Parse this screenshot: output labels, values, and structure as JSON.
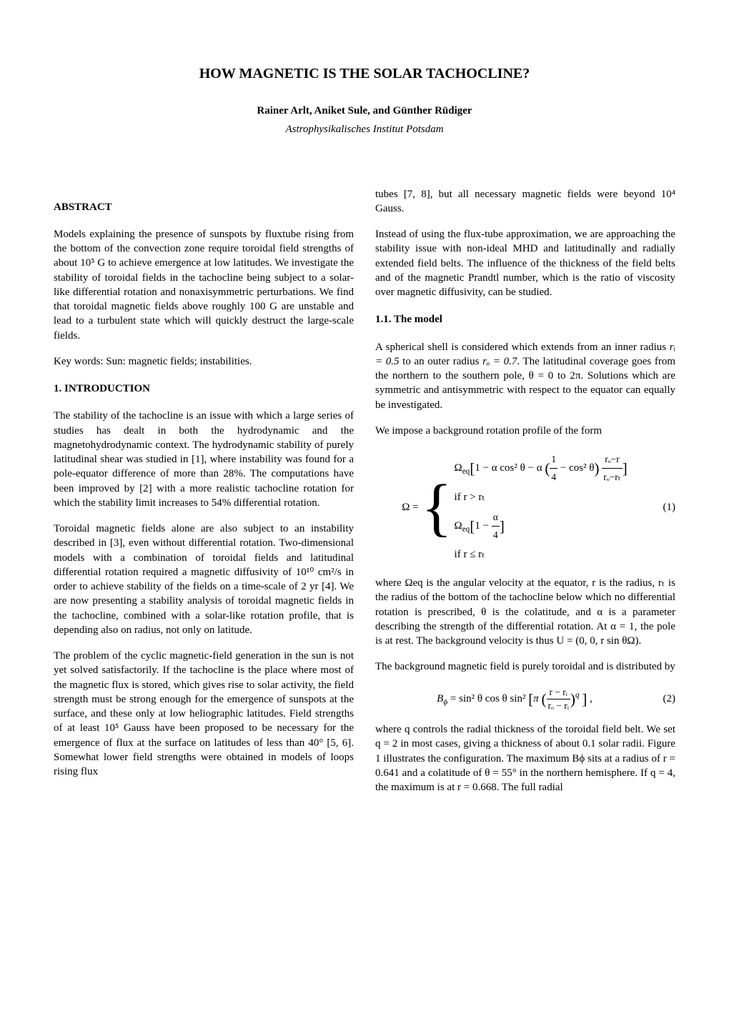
{
  "title": "HOW MAGNETIC IS THE SOLAR TACHOCLINE?",
  "authors": "Rainer Arlt, Aniket Sule, and Günther Rüdiger",
  "affiliation": "Astrophysikalisches Institut Potsdam",
  "left": {
    "abstract_heading": "ABSTRACT",
    "abstract_text": "Models explaining the presence of sunspots by fluxtube rising from the bottom of the convection zone require toroidal field strengths of about 10⁵ G to achieve emergence at low latitudes. We investigate the stability of toroidal fields in the tachocline being subject to a solar-like differential rotation and nonaxisymmetric perturbations. We find that toroidal magnetic fields above roughly 100 G are unstable and lead to a turbulent state which will quickly destruct the large-scale fields.",
    "keywords": "Key words: Sun: magnetic fields; instabilities.",
    "intro_heading": "1.   INTRODUCTION",
    "intro_p1": "The stability of the tachocline is an issue with which a large series of studies has dealt in both the hydrodynamic and the magnetohydrodynamic context. The hydrodynamic stability of purely latitudinal shear was studied in [1], where instability was found for a pole-equator difference of more than 28%. The computations have been improved by [2] with a more realistic tachocline rotation for which the stability limit increases to 54% differential rotation.",
    "intro_p2": "Toroidal magnetic fields alone are also subject to an instability described in [3], even without differential rotation. Two-dimensional models with a combination of toroidal fields and latitudinal differential rotation required a magnetic diffusivity of 10¹⁰ cm²/s in order to achieve stability of the fields on a time-scale of 2 yr [4]. We are now presenting a stability analysis of toroidal magnetic fields in the tachocline, combined with a solar-like rotation profile, that is depending also on radius, not only on latitude.",
    "intro_p3": "The problem of the cyclic magnetic-field generation in the sun is not yet solved satisfactorily. If the tachocline is the place where most of the magnetic flux is stored, which gives rise to solar activity, the field strength must be strong enough for the emergence of sunspots at the surface, and these only at low heliographic latitudes. Field strengths of at least 10⁵ Gauss have been proposed to be necessary for the emergence of flux at the surface on latitudes of less than 40° [5, 6]. Somewhat lower field strengths were obtained in models of loops rising flux"
  },
  "right": {
    "cont_p1": "tubes [7, 8], but all necessary magnetic fields were beyond 10⁴ Gauss.",
    "cont_p2": "Instead of using the flux-tube approximation, we are approaching the stability issue with non-ideal MHD and latitudinally and radially extended field belts. The influence of the thickness of the field belts and of the magnetic Prandtl number, which is the ratio of viscosity over magnetic diffusivity, can be studied.",
    "model_heading": "1.1.   The model",
    "model_p1_a": "A spherical shell is considered which extends from an inner radius ",
    "model_p1_ri": "rᵢ = 0.5",
    "model_p1_b": " to an outer radius ",
    "model_p1_ro": "rₒ = 0.7",
    "model_p1_c": ". The latitudinal coverage goes from the northern to the southern pole, θ = 0 to 2π. Solutions which are symmetric and antisymmetric with respect to the equator can equally be investigated.",
    "model_p2": "We impose a background rotation profile of the form",
    "eq1_lhs": "Ω =",
    "eq1_case1_a": "Ω",
    "eq1_case1_sub": "eq",
    "eq1_case1_b": "1 − α cos² θ − α",
    "eq1_case1_frac1num": "1",
    "eq1_case1_frac1den": "4",
    "eq1_case1_c": "− cos² θ",
    "eq1_case1_frac2num": "rₒ−r",
    "eq1_case1_frac2den": "rₒ−rₜ",
    "eq1_case1_cond": "if r > rₜ",
    "eq1_case2_a": "Ω",
    "eq1_case2_sub": "eq",
    "eq1_case2_b": "1 −",
    "eq1_case2_fracnum": "α",
    "eq1_case2_fracden": "4",
    "eq1_case2_cond": "if r ≤ rₜ",
    "eq1_num": "(1)",
    "model_p3": "where Ωeq is the angular velocity at the equator, r is the radius, rₜ is the radius of the bottom of the tachocline below which no differential rotation is prescribed, θ is the colatitude, and α is a parameter describing the strength of the differential rotation. At α = 1, the pole is at rest. The background velocity is thus U = (0, 0, r sin θΩ).",
    "model_p4": "The background magnetic field is purely toroidal and is distributed by",
    "eq2_lhs": "B",
    "eq2_lhs_sub": "ϕ",
    "eq2_rhs_a": " = sin² θ cos θ sin²",
    "eq2_rhs_b": "π",
    "eq2_fracnum": "r − rᵢ",
    "eq2_fracden": "rₒ − rᵢ",
    "eq2_exp": "q",
    "eq2_num": "(2)",
    "model_p5": "where q controls the radial thickness of the toroidal field belt. We set q = 2 in most cases, giving a thickness of about 0.1 solar radii. Figure 1 illustrates the configuration. The maximum Bϕ sits at a radius of r = 0.641 and a colatitude of θ = 55° in the northern hemisphere. If q = 4, the maximum is at r = 0.668. The full radial"
  }
}
